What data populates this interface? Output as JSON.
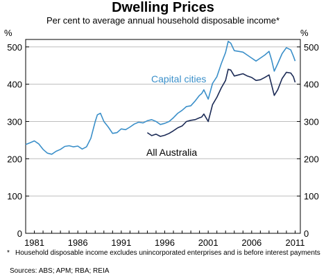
{
  "chart_data": {
    "type": "line",
    "title": "Dwelling Prices",
    "subtitle": "Per cent to average annual household disposable income*",
    "y_unit_left": "%",
    "y_unit_right": "%",
    "ylim": [
      0,
      520
    ],
    "y_ticks": [
      0,
      100,
      200,
      300,
      400,
      500
    ],
    "xlim": [
      1980,
      2011.6
    ],
    "x_tick_labels": [
      "1981",
      "1986",
      "1991",
      "1996",
      "2001",
      "2006",
      "2011"
    ],
    "x_tick_values": [
      1981,
      1986,
      1991,
      1996,
      2001,
      2006,
      2011
    ],
    "grid": true,
    "series": [
      {
        "name": "Capital cities",
        "color": "#3a8fc9",
        "x": [
          1980.0,
          1980.5,
          1981.0,
          1981.5,
          1982.0,
          1982.5,
          1983.0,
          1983.5,
          1984.0,
          1984.5,
          1985.0,
          1985.5,
          1986.0,
          1986.5,
          1987.0,
          1987.5,
          1988.0,
          1988.25,
          1988.6,
          1989.0,
          1989.5,
          1990.0,
          1990.5,
          1991.0,
          1991.5,
          1992.0,
          1992.5,
          1993.0,
          1993.5,
          1994.0,
          1994.5,
          1995.0,
          1995.5,
          1996.0,
          1996.5,
          1997.0,
          1997.5,
          1998.0,
          1998.5,
          1999.0,
          1999.5,
          2000.0,
          2000.25,
          2000.5,
          2001.0,
          2001.5,
          2002.0,
          2002.5,
          2003.0,
          2003.3,
          2003.6,
          2004.0,
          2004.5,
          2005.0,
          2005.5,
          2006.0,
          2006.5,
          2007.0,
          2007.5,
          2008.0,
          2008.3,
          2008.6,
          2009.0,
          2009.5,
          2010.0,
          2010.5,
          2010.8,
          2011.0
        ],
        "values": [
          238,
          243,
          248,
          240,
          225,
          215,
          212,
          220,
          225,
          233,
          235,
          232,
          234,
          226,
          232,
          255,
          300,
          318,
          322,
          300,
          285,
          268,
          270,
          280,
          278,
          285,
          293,
          298,
          296,
          302,
          305,
          300,
          292,
          295,
          300,
          310,
          322,
          330,
          340,
          342,
          355,
          370,
          375,
          385,
          360,
          402,
          420,
          455,
          485,
          515,
          510,
          490,
          488,
          486,
          478,
          470,
          462,
          470,
          478,
          488,
          465,
          435,
          455,
          482,
          498,
          492,
          475,
          462
        ]
      },
      {
        "name": "All Australia",
        "color": "#1b2a55",
        "x": [
          1994.0,
          1994.5,
          1995.0,
          1995.5,
          1996.0,
          1996.5,
          1997.0,
          1997.5,
          1998.0,
          1998.5,
          1999.0,
          1999.5,
          2000.0,
          2000.25,
          2000.5,
          2001.0,
          2001.5,
          2002.0,
          2002.5,
          2003.0,
          2003.3,
          2003.6,
          2004.0,
          2004.5,
          2005.0,
          2005.5,
          2006.0,
          2006.5,
          2007.0,
          2007.5,
          2008.0,
          2008.3,
          2008.6,
          2009.0,
          2009.5,
          2010.0,
          2010.5,
          2010.8,
          2011.0
        ],
        "values": [
          270,
          262,
          266,
          260,
          263,
          268,
          275,
          283,
          288,
          300,
          303,
          305,
          310,
          312,
          320,
          300,
          345,
          365,
          390,
          410,
          440,
          438,
          422,
          425,
          428,
          422,
          418,
          410,
          412,
          418,
          425,
          398,
          370,
          385,
          415,
          432,
          430,
          420,
          405
        ]
      }
    ],
    "annotations": [
      {
        "text": "Capital cities",
        "color": "#3a8fc9"
      },
      {
        "text": "All Australia",
        "color": "#000000"
      }
    ]
  },
  "footnote": {
    "star": "*",
    "text": "Household disposable income excludes unincorporated enterprises and is before interest payments"
  },
  "sources": "Sources: ABS; APM; RBA; REIA"
}
